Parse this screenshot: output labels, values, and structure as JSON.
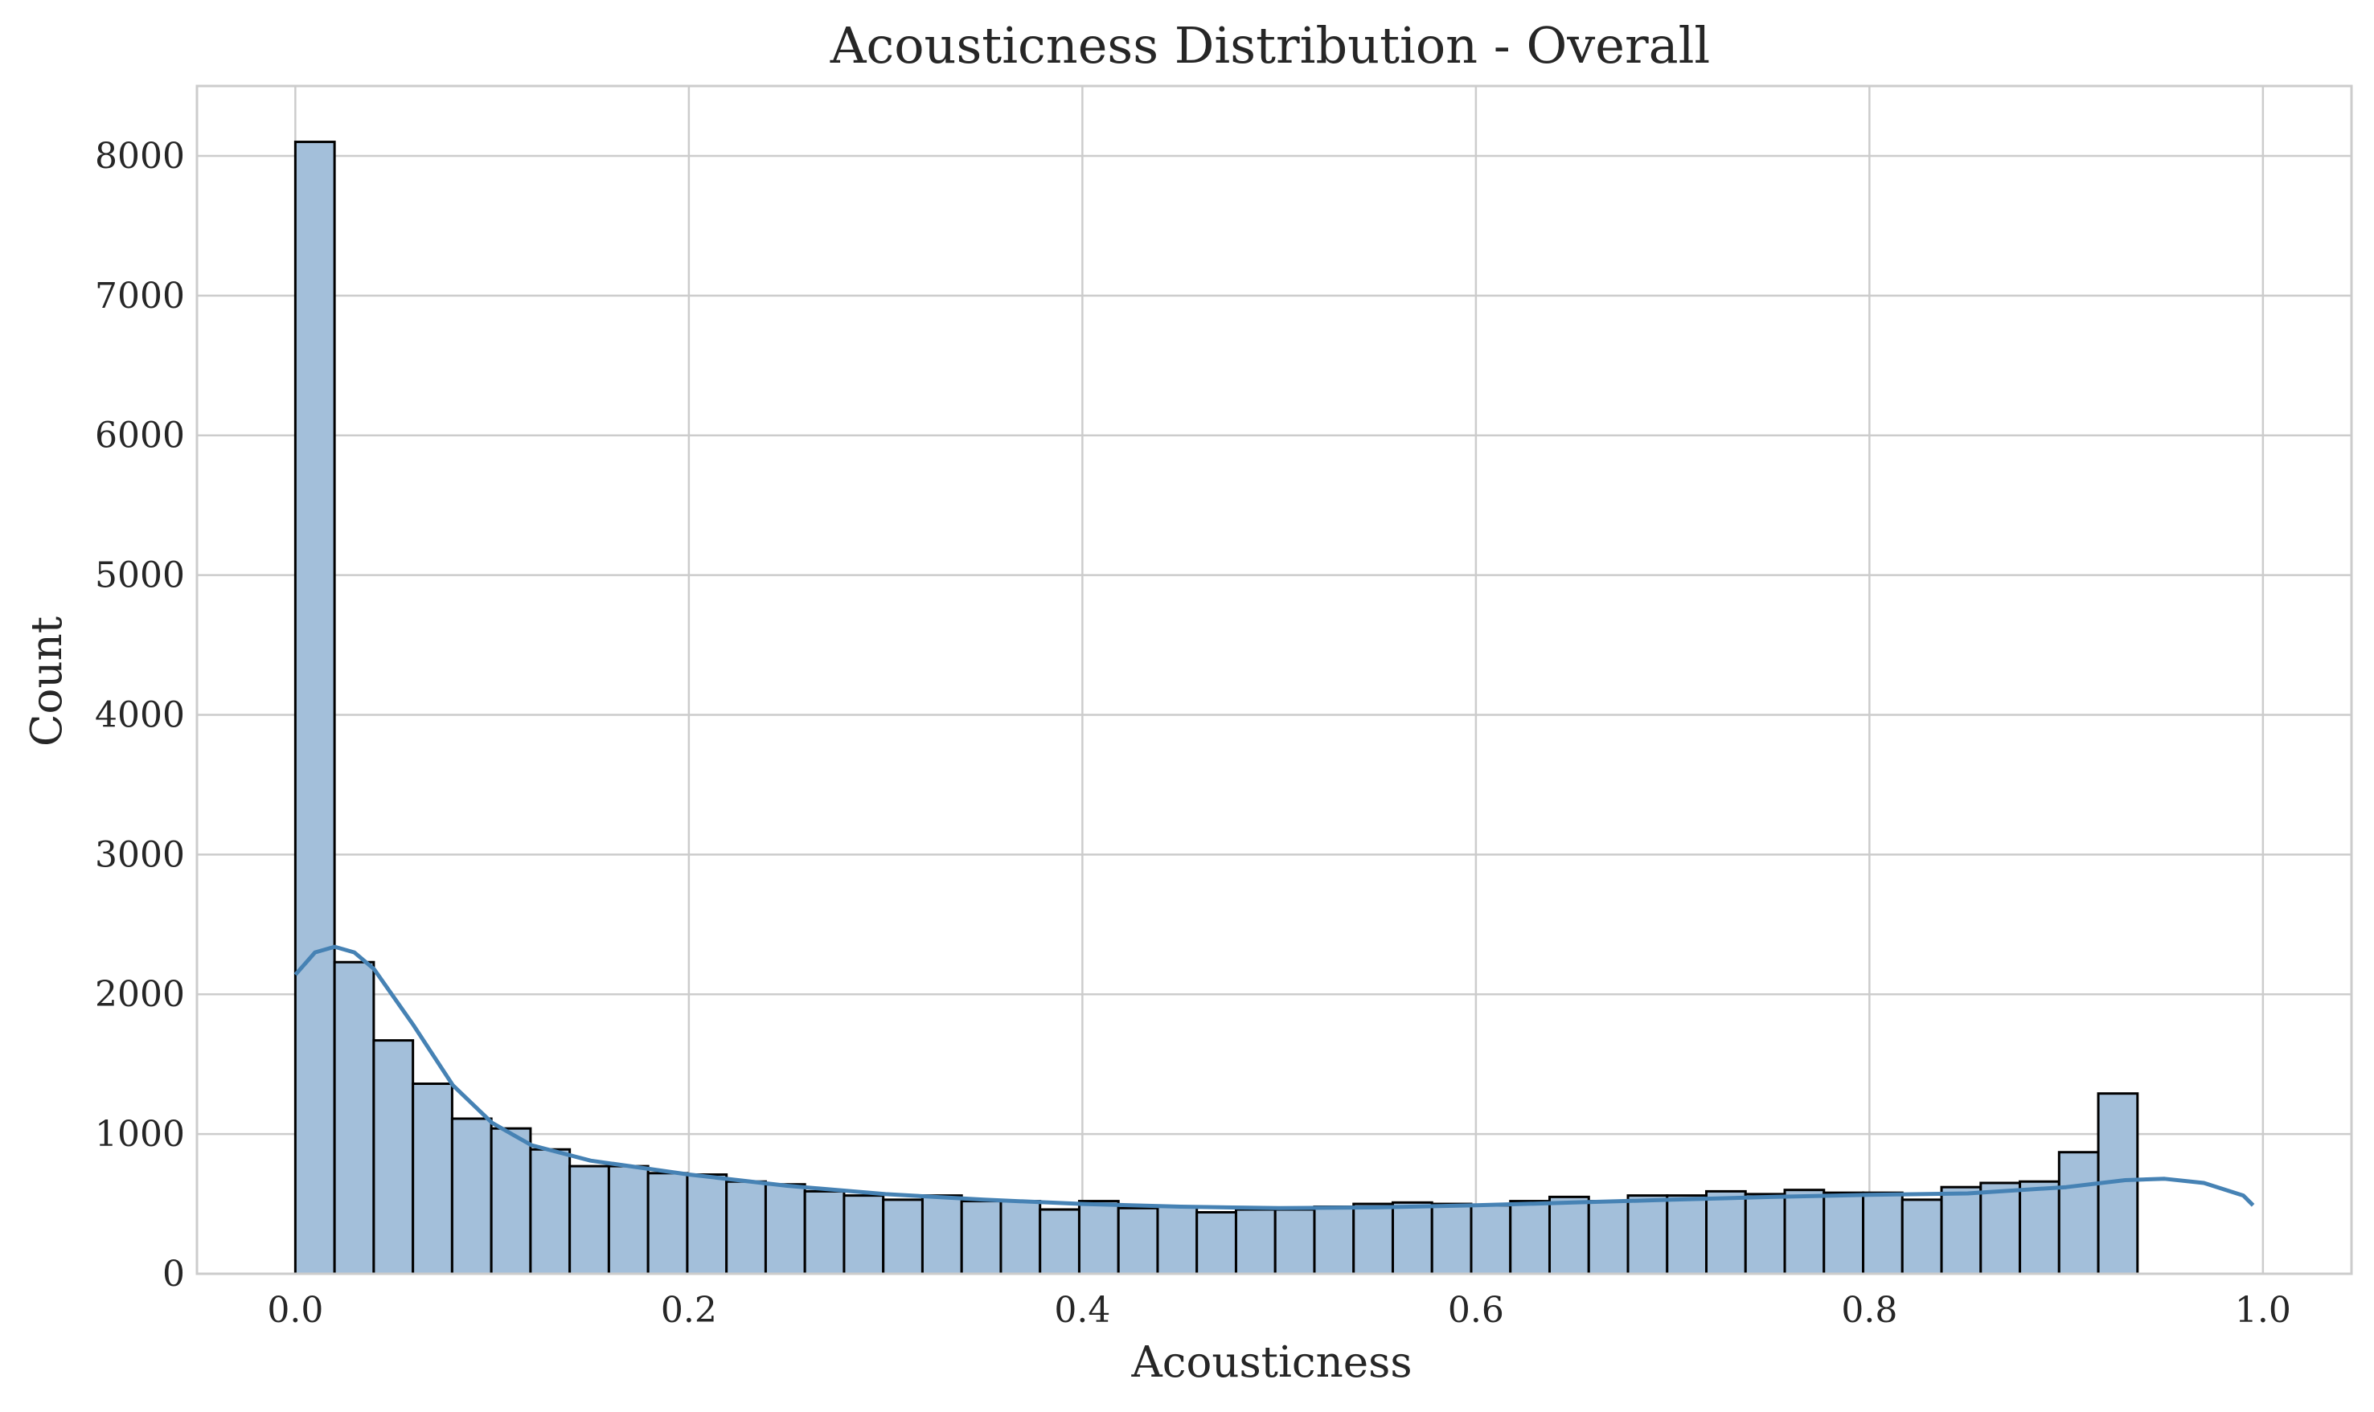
{
  "chart_data": {
    "type": "histogram",
    "title": "Acousticness Distribution - Overall",
    "xlabel": "Acousticness",
    "ylabel": "Count",
    "xlim": [
      -0.05,
      1.045
    ],
    "ylim": [
      0,
      8500
    ],
    "x_ticks": [
      0.0,
      0.2,
      0.4,
      0.6,
      0.8,
      1.0
    ],
    "x_tick_labels": [
      "0.0",
      "0.2",
      "0.4",
      "0.6",
      "0.8",
      "1.0"
    ],
    "y_ticks": [
      0,
      1000,
      2000,
      3000,
      4000,
      5000,
      6000,
      7000,
      8000
    ],
    "y_tick_labels": [
      "0",
      "1000",
      "2000",
      "3000",
      "4000",
      "5000",
      "6000",
      "7000",
      "8000"
    ],
    "grid": true,
    "bin_start": 0.0,
    "bin_width": 0.01992,
    "counts": [
      8100,
      2230,
      1670,
      1360,
      1110,
      1040,
      890,
      770,
      770,
      720,
      710,
      660,
      640,
      590,
      560,
      530,
      560,
      520,
      520,
      460,
      520,
      470,
      480,
      440,
      460,
      460,
      480,
      500,
      510,
      500,
      490,
      520,
      550,
      520,
      560,
      560,
      590,
      570,
      600,
      580,
      580,
      530,
      620,
      650,
      660,
      870,
      1290
    ],
    "kde": {
      "x": [
        0.0,
        0.01,
        0.02,
        0.03,
        0.04,
        0.06,
        0.08,
        0.1,
        0.12,
        0.15,
        0.2,
        0.25,
        0.3,
        0.35,
        0.4,
        0.45,
        0.5,
        0.55,
        0.6,
        0.65,
        0.7,
        0.75,
        0.8,
        0.85,
        0.9,
        0.93,
        0.95,
        0.97,
        0.99,
        0.995
      ],
      "y": [
        2140,
        2300,
        2340,
        2300,
        2180,
        1780,
        1350,
        1080,
        920,
        810,
        710,
        630,
        570,
        530,
        500,
        480,
        470,
        475,
        490,
        510,
        530,
        550,
        565,
        575,
        620,
        670,
        680,
        650,
        560,
        490
      ]
    },
    "colors": {
      "bar_fill": "#a3bfda",
      "bar_edge": "#000000",
      "kde_line": "#4682b4",
      "grid": "#cccccc",
      "spine": "#cccccc"
    }
  }
}
